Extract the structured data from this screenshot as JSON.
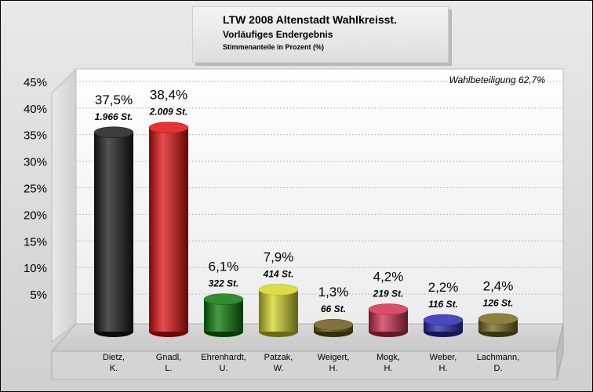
{
  "header": {
    "title": "LTW 2008 Altenstadt Wahlkreisst.",
    "subtitle": "Vorläufiges Endergebnis",
    "unit_note": "Stimmenanteile in Prozent (%)"
  },
  "turnout": "Wahlbeteiligung 62,7%",
  "chart_data": {
    "type": "bar",
    "title": "LTW 2008 Altenstadt Wahlkreisst.",
    "ylabel": "",
    "xlabel": "",
    "ylim": [
      0,
      45
    ],
    "yticks": [
      "5%",
      "10%",
      "15%",
      "20%",
      "25%",
      "30%",
      "35%",
      "40%",
      "45%"
    ],
    "grid": true,
    "categories": [
      [
        "Dietz,",
        "K."
      ],
      [
        "Gnadl,",
        "L."
      ],
      [
        "Ehrenhardt,",
        "U."
      ],
      [
        "Patzak,",
        "W."
      ],
      [
        "Weigert,",
        "H."
      ],
      [
        "Mogk,",
        "H."
      ],
      [
        "Weber,",
        "H."
      ],
      [
        "Lachmann,",
        "D."
      ]
    ],
    "values": [
      37.5,
      38.4,
      6.1,
      7.9,
      1.3,
      4.2,
      2.2,
      2.4
    ],
    "value_labels": [
      "37,5%",
      "38,4%",
      "6,1%",
      "7,9%",
      "1,3%",
      "4,2%",
      "2,2%",
      "2,4%"
    ],
    "votes": [
      "1.966 St.",
      "2.009 St.",
      "322 St.",
      "414 St.",
      "66 St.",
      "219 St.",
      "116 St.",
      "126 St."
    ],
    "colors": [
      "#1a1a1a",
      "#e01010",
      "#0a7a0a",
      "#d6d62a",
      "#6a5a1a",
      "#d03050",
      "#2a2ab0",
      "#7a6a20"
    ]
  }
}
